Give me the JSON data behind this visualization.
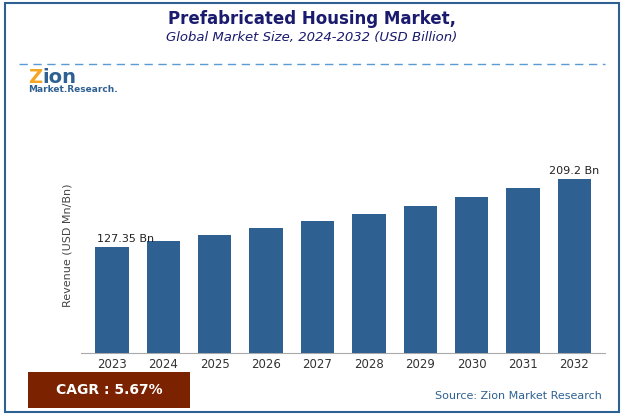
{
  "title_line1": "Prefabricated Housing Market,",
  "title_line2": "Global Market Size, 2024-2032 (USD Billion)",
  "years": [
    2023,
    2024,
    2025,
    2026,
    2027,
    2028,
    2029,
    2030,
    2031,
    2032
  ],
  "values": [
    127.35,
    134.57,
    142.19,
    150.24,
    158.75,
    167.73,
    177.22,
    187.26,
    197.9,
    209.2
  ],
  "bar_color": "#2e6192",
  "ylabel": "Revenue (USD Mn/Bn)",
  "ylim": [
    0,
    260
  ],
  "annotation_first": "127.35 Bn",
  "annotation_last": "209.2 Bn",
  "cagr_text": "CAGR : 5.67%",
  "cagr_bg_color": "#7B2200",
  "source_text": "Source: Zion Market Research",
  "source_color": "#2e6192",
  "dashed_line_color": "#5b9bd5",
  "border_color": "#2e6192",
  "background_color": "#ffffff",
  "title_color": "#1a1a6e",
  "subtitle_color": "#1a1a6e"
}
